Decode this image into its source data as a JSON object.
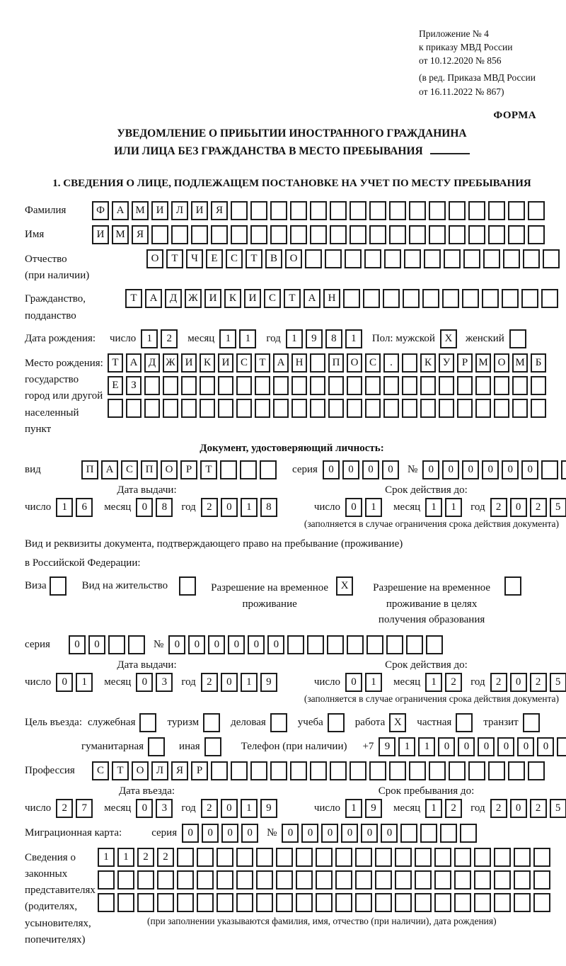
{
  "header": {
    "lines": [
      "Приложение № 4",
      "к приказу МВД России",
      "от 10.12.2020 № 856"
    ],
    "lines2": [
      "(в ред. Приказа МВД России",
      "от 16.11.2022 № 867)"
    ],
    "forma": "ФОРМА"
  },
  "title": {
    "line1": "УВЕДОМЛЕНИЕ О ПРИБЫТИИ ИНОСТРАННОГО ГРАЖДАНИНА",
    "line2": "ИЛИ ЛИЦА БЕЗ ГРАЖДАНСТВА В МЕСТО ПРЕБЫВАНИЯ"
  },
  "section1": {
    "heading": "1. СВЕДЕНИЯ О ЛИЦЕ, ПОДЛЕЖАЩЕМ ПОСТАНОВКЕ НА УЧЕТ ПО МЕСТУ ПРЕБЫВАНИЯ"
  },
  "words": {
    "day": "число",
    "month": "месяц",
    "year": "год",
    "series": "серия",
    "number": "№"
  },
  "person": {
    "surname": {
      "label": "Фамилия",
      "cells": [
        "Ф",
        "А",
        "М",
        "И",
        "Л",
        "И",
        "Я",
        "",
        "",
        "",
        "",
        "",
        "",
        "",
        "",
        "",
        "",
        "",
        "",
        "",
        "",
        "",
        ""
      ]
    },
    "name": {
      "label": "Имя",
      "cells": [
        "И",
        "М",
        "Я",
        "",
        "",
        "",
        "",
        "",
        "",
        "",
        "",
        "",
        "",
        "",
        "",
        "",
        "",
        "",
        "",
        "",
        "",
        "",
        ""
      ]
    },
    "patronymic": {
      "label1": "Отчество",
      "label2": "(при наличии)",
      "cells": [
        "О",
        "Т",
        "Ч",
        "Е",
        "С",
        "Т",
        "В",
        "О",
        "",
        "",
        "",
        "",
        "",
        "",
        "",
        "",
        "",
        "",
        "",
        "",
        ""
      ]
    },
    "citizenship": {
      "label1": "Гражданство,",
      "label2": "подданство",
      "cells": [
        "Т",
        "А",
        "Д",
        "Ж",
        "И",
        "К",
        "И",
        "С",
        "Т",
        "А",
        "Н",
        "",
        "",
        "",
        "",
        "",
        "",
        "",
        "",
        "",
        "",
        ""
      ]
    },
    "birth": {
      "label": "Дата рождения:",
      "day": [
        "1",
        "2"
      ],
      "month": [
        "1",
        "1"
      ],
      "year": [
        "1",
        "9",
        "8",
        "1"
      ],
      "sex_label": "Пол: мужской",
      "male": "X",
      "female_label": "женский",
      "female": ""
    },
    "birthplace": {
      "label_lines": [
        "Место рождения:",
        "государство",
        "город или другой",
        "населенный пункт"
      ],
      "rows": [
        [
          "Т",
          "А",
          "Д",
          "Ж",
          "И",
          "К",
          "И",
          "С",
          "Т",
          "А",
          "Н",
          "",
          "П",
          "О",
          "С",
          ".",
          "",
          "К",
          "У",
          "Р",
          "М",
          "О",
          "М",
          "Б"
        ],
        [
          "Е",
          "З",
          "",
          "",
          "",
          "",
          "",
          "",
          "",
          "",
          "",
          "",
          "",
          "",
          "",
          "",
          "",
          "",
          "",
          "",
          "",
          "",
          "",
          ""
        ],
        [
          "",
          "",
          "",
          "",
          "",
          "",
          "",
          "",
          "",
          "",
          "",
          "",
          "",
          "",
          "",
          "",
          "",
          "",
          "",
          "",
          "",
          "",
          "",
          ""
        ]
      ]
    }
  },
  "identity": {
    "heading": "Документ, удостоверяющий личность:",
    "type_label": "вид",
    "type_cells": [
      "П",
      "А",
      "С",
      "П",
      "О",
      "Р",
      "Т",
      "",
      "",
      ""
    ],
    "series_cells": [
      "0",
      "0",
      "0",
      "0"
    ],
    "number_cells": [
      "0",
      "0",
      "0",
      "0",
      "0",
      "0",
      "",
      "",
      "",
      "",
      ""
    ],
    "issue_label": "Дата выдачи:",
    "valid_label": "Срок действия до:",
    "issue_d": [
      "1",
      "6"
    ],
    "issue_m": [
      "0",
      "8"
    ],
    "issue_y": [
      "2",
      "0",
      "1",
      "8"
    ],
    "valid_d": [
      "0",
      "1"
    ],
    "valid_m": [
      "1",
      "1"
    ],
    "valid_y": [
      "2",
      "0",
      "2",
      "5"
    ],
    "note": "(заполняется в случае ограничения срока действия документа)"
  },
  "residence": {
    "heading1": "Вид и реквизиты документа, подтверждающего право на пребывание (проживание)",
    "heading2": "в Российской Федерации:",
    "opt1": {
      "label": "Виза",
      "value": ""
    },
    "opt2": {
      "label": "Вид на жительство",
      "value": ""
    },
    "opt3": {
      "label": "Разрешение на временное проживание",
      "value": "X"
    },
    "opt4": {
      "label": "Разрешение на временное проживание в целях получения образования",
      "value": ""
    },
    "series_cells": [
      "0",
      "0",
      "",
      ""
    ],
    "number_cells": [
      "0",
      "0",
      "0",
      "0",
      "0",
      "0",
      "",
      "",
      "",
      "",
      "",
      "",
      "",
      ""
    ],
    "issue_label": "Дата выдачи:",
    "valid_label": "Срок действия до:",
    "issue_d": [
      "0",
      "1"
    ],
    "issue_m": [
      "0",
      "3"
    ],
    "issue_y": [
      "2",
      "0",
      "1",
      "9"
    ],
    "valid_d": [
      "0",
      "1"
    ],
    "valid_m": [
      "1",
      "2"
    ],
    "valid_y": [
      "2",
      "0",
      "2",
      "5"
    ],
    "note": "(заполняется в случае ограничения срока действия документа)"
  },
  "purpose": {
    "label": "Цель въезда:",
    "row1": [
      {
        "label": "служебная",
        "value": ""
      },
      {
        "label": "туризм",
        "value": ""
      },
      {
        "label": "деловая",
        "value": ""
      },
      {
        "label": "учеба",
        "value": ""
      },
      {
        "label": "работа",
        "value": "X"
      },
      {
        "label": "частная",
        "value": ""
      },
      {
        "label": "транзит",
        "value": ""
      }
    ],
    "row2": [
      {
        "label": "гуманитарная",
        "value": ""
      },
      {
        "label": "иная",
        "value": ""
      }
    ],
    "phone_label": "Телефон (при наличии)",
    "phone_prefix": "+7",
    "phone_cells": [
      "9",
      "1",
      "1",
      "0",
      "0",
      "0",
      "0",
      "0",
      "0",
      ""
    ]
  },
  "profession": {
    "label": "Профессия",
    "cells": [
      "С",
      "Т",
      "О",
      "Л",
      "Я",
      "Р",
      "",
      "",
      "",
      "",
      "",
      "",
      "",
      "",
      "",
      "",
      "",
      "",
      "",
      "",
      "",
      "",
      ""
    ]
  },
  "entrydates": {
    "entry_label": "Дата въезда:",
    "stay_label": "Срок пребывания до:",
    "entry_d": [
      "2",
      "7"
    ],
    "entry_m": [
      "0",
      "3"
    ],
    "entry_y": [
      "2",
      "0",
      "1",
      "9"
    ],
    "stay_d": [
      "1",
      "9"
    ],
    "stay_m": [
      "1",
      "2"
    ],
    "stay_y": [
      "2",
      "0",
      "2",
      "5"
    ]
  },
  "migration_card": {
    "label": "Миграционная карта:",
    "series_cells": [
      "0",
      "0",
      "0",
      "0"
    ],
    "number_cells": [
      "0",
      "0",
      "0",
      "0",
      "0",
      "0",
      "",
      "",
      "",
      ""
    ]
  },
  "representatives": {
    "label_lines": [
      "Сведения о",
      "законных",
      "представителях",
      "(родителях,",
      "усыновителях,",
      "попечителях)"
    ],
    "rows": [
      [
        "1",
        "1",
        "2",
        "2",
        "",
        "",
        "",
        "",
        "",
        "",
        "",
        "",
        "",
        "",
        "",
        "",
        "",
        "",
        "",
        "",
        "",
        "",
        ""
      ],
      [
        "",
        "",
        "",
        "",
        "",
        "",
        "",
        "",
        "",
        "",
        "",
        "",
        "",
        "",
        "",
        "",
        "",
        "",
        "",
        "",
        "",
        "",
        ""
      ],
      [
        "",
        "",
        "",
        "",
        "",
        "",
        "",
        "",
        "",
        "",
        "",
        "",
        "",
        "",
        "",
        "",
        "",
        "",
        "",
        "",
        "",
        "",
        ""
      ]
    ],
    "note": "(при заполнении указываются фамилия, имя, отчество (при наличии), дата рождения)"
  }
}
